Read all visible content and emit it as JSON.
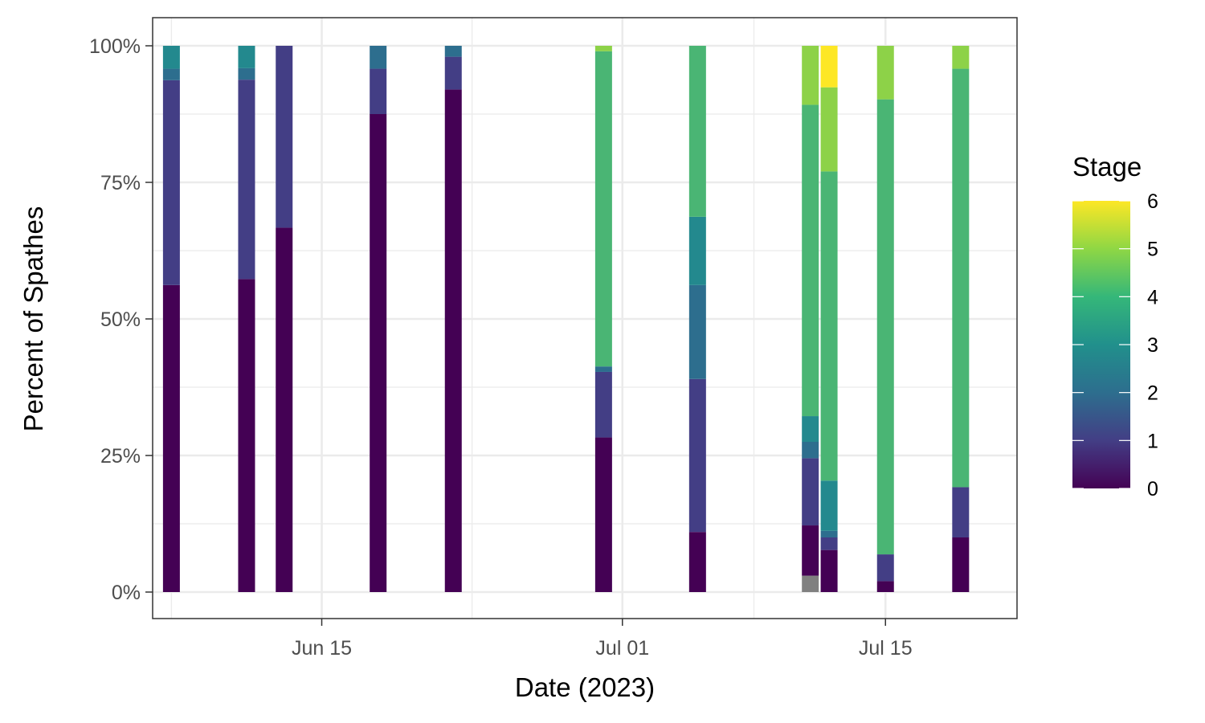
{
  "chart_data": {
    "type": "bar",
    "stacked": true,
    "y_format": "percent",
    "xlabel": "Date (2023)",
    "ylabel": "Percent of Spathes",
    "ylim": [
      0,
      1
    ],
    "xlim": [
      "2023-06-06",
      "2023-07-22"
    ],
    "x_ticks": [
      {
        "date": "2023-06-15",
        "label": "Jun 15"
      },
      {
        "date": "2023-07-01",
        "label": "Jul 01"
      },
      {
        "date": "2023-07-15",
        "label": "Jul 15"
      }
    ],
    "y_ticks": [
      {
        "value": 0,
        "label": "0%"
      },
      {
        "value": 0.25,
        "label": "25%"
      },
      {
        "value": 0.5,
        "label": "50%"
      },
      {
        "value": 0.75,
        "label": "75%"
      },
      {
        "value": 1,
        "label": "100%"
      }
    ],
    "grid": true,
    "legend": {
      "title": "Stage",
      "position": "right",
      "type": "colorbar",
      "min": 0,
      "max": 6,
      "labels": [
        "0",
        "1",
        "2",
        "3",
        "4",
        "5",
        "6"
      ]
    },
    "colors": {
      "stage_0": "#440154",
      "stage_1": "#433E85",
      "stage_2": "#2D6E8E",
      "stage_3": "#23898E",
      "stage_4": "#4AB574",
      "stage_5": "#8DD248",
      "stage_6": "#FDE725",
      "missing": "#808080"
    },
    "bars": [
      {
        "date": "2023-06-07",
        "segments": [
          {
            "stage": 0,
            "value": 0.562
          },
          {
            "stage": 1,
            "value": 0.375
          },
          {
            "stage": 2,
            "value": 0.021
          },
          {
            "stage": 3,
            "value": 0.042
          }
        ]
      },
      {
        "date": "2023-06-11",
        "segments": [
          {
            "stage": 0,
            "value": 0.573
          },
          {
            "stage": 1,
            "value": 0.365
          },
          {
            "stage": 2,
            "value": 0.021
          },
          {
            "stage": 3,
            "value": 0.041
          }
        ]
      },
      {
        "date": "2023-06-13",
        "segments": [
          {
            "stage": 0,
            "value": 0.667
          },
          {
            "stage": 1,
            "value": 0.333
          }
        ]
      },
      {
        "date": "2023-06-18",
        "segments": [
          {
            "stage": 0,
            "value": 0.875
          },
          {
            "stage": 1,
            "value": 0.083
          },
          {
            "stage": 2,
            "value": 0.042
          }
        ]
      },
      {
        "date": "2023-06-22",
        "segments": [
          {
            "stage": 0,
            "value": 0.92
          },
          {
            "stage": 1,
            "value": 0.06
          },
          {
            "stage": 2,
            "value": 0.02
          }
        ]
      },
      {
        "date": "2023-06-30",
        "segments": [
          {
            "stage": 0,
            "value": 0.283
          },
          {
            "stage": 1,
            "value": 0.12
          },
          {
            "stage": 2,
            "value": 0.01
          },
          {
            "stage": 4,
            "value": 0.577
          },
          {
            "stage": 5,
            "value": 0.01
          }
        ]
      },
      {
        "date": "2023-07-05",
        "segments": [
          {
            "stage": 0,
            "value": 0.11
          },
          {
            "stage": 1,
            "value": 0.28
          },
          {
            "stage": 2,
            "value": 0.172
          },
          {
            "stage": 3,
            "value": 0.125
          },
          {
            "stage": 4,
            "value": 0.313
          }
        ]
      },
      {
        "date": "2023-07-11",
        "segments": [
          {
            "stage": null,
            "value": 0.03
          },
          {
            "stage": 0,
            "value": 0.092
          },
          {
            "stage": 1,
            "value": 0.123
          },
          {
            "stage": 2,
            "value": 0.03
          },
          {
            "stage": 3,
            "value": 0.047
          },
          {
            "stage": 4,
            "value": 0.57
          },
          {
            "stage": 5,
            "value": 0.108
          }
        ]
      },
      {
        "date": "2023-07-12",
        "segments": [
          {
            "stage": 0,
            "value": 0.077
          },
          {
            "stage": 1,
            "value": 0.023
          },
          {
            "stage": 2,
            "value": 0.012
          },
          {
            "stage": 3,
            "value": 0.092
          },
          {
            "stage": 4,
            "value": 0.566
          },
          {
            "stage": 5,
            "value": 0.154
          },
          {
            "stage": 6,
            "value": 0.076
          }
        ]
      },
      {
        "date": "2023-07-15",
        "segments": [
          {
            "stage": 0,
            "value": 0.02
          },
          {
            "stage": 1,
            "value": 0.049
          },
          {
            "stage": 4,
            "value": 0.833
          },
          {
            "stage": 5,
            "value": 0.098
          }
        ]
      },
      {
        "date": "2023-07-19",
        "segments": [
          {
            "stage": 0,
            "value": 0.1
          },
          {
            "stage": 1,
            "value": 0.092
          },
          {
            "stage": 4,
            "value": 0.766
          },
          {
            "stage": 5,
            "value": 0.042
          }
        ]
      }
    ]
  }
}
